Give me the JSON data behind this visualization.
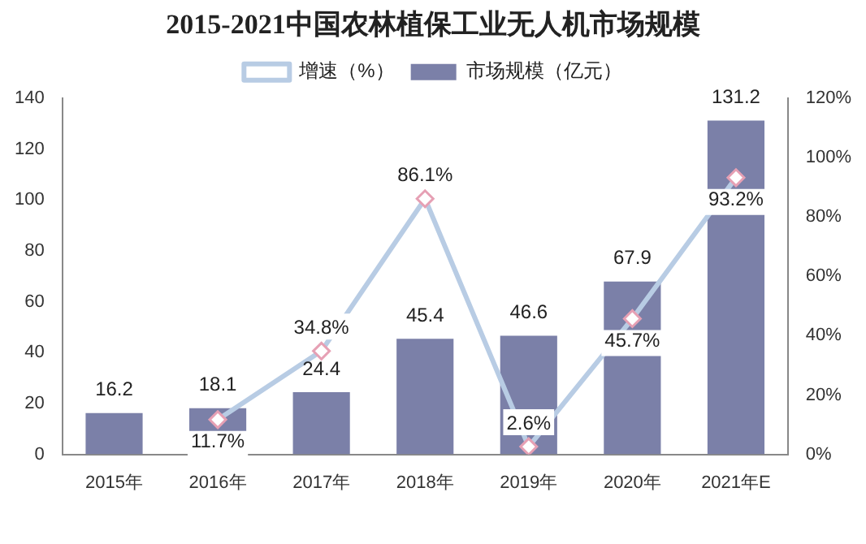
{
  "chart_data": {
    "type": "bar",
    "title": "2015-2021中国农林植保工业无人机市场规模",
    "categories": [
      "2015年",
      "2016年",
      "2017年",
      "2018年",
      "2019年",
      "2020年",
      "2021年E"
    ],
    "series": [
      {
        "name": "市场规模（亿元）",
        "color": "#7b80a8",
        "values": [
          16.2,
          18.1,
          24.4,
          45.4,
          46.6,
          67.9,
          131.2
        ]
      },
      {
        "name": "增速（%）",
        "type": "line",
        "axis": "y2",
        "color": "#b8cce4",
        "marker": "diamond",
        "values": [
          null,
          11.7,
          34.8,
          86.1,
          2.6,
          45.7,
          93.2
        ],
        "value_labels": [
          null,
          "11.7%",
          "34.8%",
          "86.1%",
          "2.6%",
          "45.7%",
          "93.2%"
        ]
      }
    ],
    "data_labels": true,
    "ylim": [
      0,
      140
    ],
    "yticks": [
      0,
      20,
      40,
      60,
      80,
      100,
      120,
      140
    ],
    "y2lim": [
      0,
      120
    ],
    "y2ticks": [
      {
        "value": 0,
        "label": "0%"
      },
      {
        "value": 20,
        "label": "20%"
      },
      {
        "value": 40,
        "label": "40%"
      },
      {
        "value": 60,
        "label": "60%"
      },
      {
        "value": 80,
        "label": "80%"
      },
      {
        "value": 100,
        "label": "100%"
      },
      {
        "value": 120,
        "label": "120%"
      }
    ],
    "grid": false,
    "legend": "top"
  }
}
